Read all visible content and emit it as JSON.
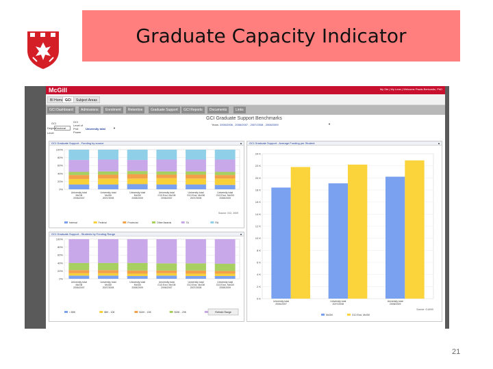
{
  "slide": {
    "title": "Graduate Capacity Indicator",
    "page_number": "21"
  },
  "app": {
    "logo_text": "McGill",
    "user_links": "My Ste | My Lean | Welcome Pawls Berkowitz, PhD",
    "sub_tabs": [
      {
        "label": "BI Home",
        "active": false
      },
      {
        "label": "GCI",
        "active": true
      },
      {
        "label": "Subject Areas",
        "active": false
      }
    ],
    "nav_tabs": [
      "GCI Dashboard",
      "Admissions",
      "Enrolment",
      "Retention",
      "Graduate Support",
      "GCI Reports",
      "Documents",
      "Links"
    ],
    "filters": {
      "gci_label": "GCI",
      "degree_label": "Degree",
      "degree_value": "Doctoral",
      "level_label": "Level",
      "group_label": "GCI Level of Prof. Power",
      "group_value": "University total",
      "dashboard_title": "GCI Graduate Support Benchmarks",
      "years_label": "Years",
      "years_value": "2005/2006 , 2006/2007 , 2007/2008 , 2008/2009"
    }
  },
  "charts_meta": {
    "stacked_top": {
      "header": "GCI Graduate Support - Funding by source",
      "source_note": "Source: GCI, 2009",
      "legend": [
        {
          "name": "Internal",
          "color": "#7aa0f0"
        },
        {
          "name": "Federal",
          "color": "#f8d03a"
        },
        {
          "name": "Provincial",
          "color": "#f2a14a"
        },
        {
          "name": "Other Awards",
          "color": "#a8d060"
        },
        {
          "name": "TA",
          "color": "#c8a8e8"
        },
        {
          "name": "RA",
          "color": "#8fd0e8"
        }
      ]
    },
    "stacked_bottom": {
      "header": "GCI Graduate Support - Students by Funding Range",
      "legend": [
        {
          "name": "< $5K",
          "color": "#7aa0f0"
        },
        {
          "name": "$5K - 10K",
          "color": "#f8d03a"
        },
        {
          "name": "$10K - 15K",
          "color": "#f2a14a"
        },
        {
          "name": "$15K - 20K",
          "color": "#a8d060"
        },
        {
          "name": "> $20K",
          "color": "#c8a8e8"
        }
      ],
      "button_label": "Refresh Range"
    },
    "bar_right": {
      "header": "GCI Graduate Support - Average Funding per Student",
      "source_note": "Source: G-6000"
    }
  },
  "chart_data": [
    {
      "type": "bar",
      "stacked": true,
      "title": "GCI Graduate Support - Funding by source",
      "categories": [
        "University total McGill 2006/2007",
        "University total McGill 2007/2008",
        "University total McGill 2008/2009",
        "University total G13 Excl. McGill 2006/2007",
        "University total G13 Excl. McGill 2007/2008",
        "University total G13 Excl. McGill 2008/2009"
      ],
      "ylim": [
        0,
        100
      ],
      "yticks": [
        "0%",
        "20%",
        "40%",
        "60%",
        "80%",
        "100%"
      ],
      "series": [
        {
          "name": "Internal",
          "values": [
            12,
            12,
            13,
            12,
            12,
            11
          ]
        },
        {
          "name": "Federal",
          "values": [
            14,
            15,
            14,
            16,
            15,
            16
          ]
        },
        {
          "name": "Provincial",
          "values": [
            10,
            10,
            11,
            9,
            10,
            9
          ]
        },
        {
          "name": "Other Awards",
          "values": [
            8,
            8,
            8,
            8,
            8,
            8
          ]
        },
        {
          "name": "TA",
          "values": [
            30,
            30,
            28,
            30,
            30,
            31
          ]
        },
        {
          "name": "RA",
          "values": [
            26,
            25,
            26,
            25,
            25,
            25
          ]
        }
      ]
    },
    {
      "type": "bar",
      "stacked": true,
      "title": "GCI Graduate Support - Students by Funding Range",
      "categories": [
        "University total McGill 2006/2007",
        "University total McGill 2007/2008",
        "University total McGill 2008/2009",
        "University total G13 Excl. McGill 2006/2007",
        "University total G13 Excl. McGill 2007/2008",
        "University total G13 Excl. McGill 2008/2009"
      ],
      "ylim": [
        0,
        100
      ],
      "yticks": [
        "0%",
        "20%",
        "40%",
        "60%",
        "80%",
        "100%"
      ],
      "series": [
        {
          "name": "< $5K",
          "values": [
            8,
            8,
            7,
            8,
            7,
            7
          ]
        },
        {
          "name": "$5K - 10K",
          "values": [
            6,
            6,
            6,
            6,
            6,
            6
          ]
        },
        {
          "name": "$10K - 15K",
          "values": [
            8,
            8,
            8,
            7,
            8,
            7
          ]
        },
        {
          "name": "$15K - 20K",
          "values": [
            18,
            18,
            19,
            18,
            18,
            18
          ]
        },
        {
          "name": "> $20K",
          "values": [
            60,
            60,
            60,
            61,
            61,
            62
          ]
        }
      ]
    },
    {
      "type": "bar",
      "title": "GCI Graduate Support - Average Funding per Student",
      "categories": [
        "University total 2006/2007",
        "University total 2007/2008",
        "University total 2008/2009"
      ],
      "ylim": [
        0,
        24
      ],
      "yticks": [
        "0 K",
        "2 K",
        "4 K",
        "6 K",
        "8 K",
        "10 K",
        "12 K",
        "14 K",
        "16 K",
        "18 K",
        "20 K",
        "22 K",
        "24 K"
      ],
      "series": [
        {
          "name": "McGill",
          "color": "#7aa0f0",
          "values": [
            18.4,
            19.1,
            20.2
          ]
        },
        {
          "name": "G13 Excl. McGill",
          "color": "#fbd33a",
          "values": [
            21.8,
            22.2,
            22.9
          ]
        }
      ],
      "legend": "bottom"
    }
  ]
}
